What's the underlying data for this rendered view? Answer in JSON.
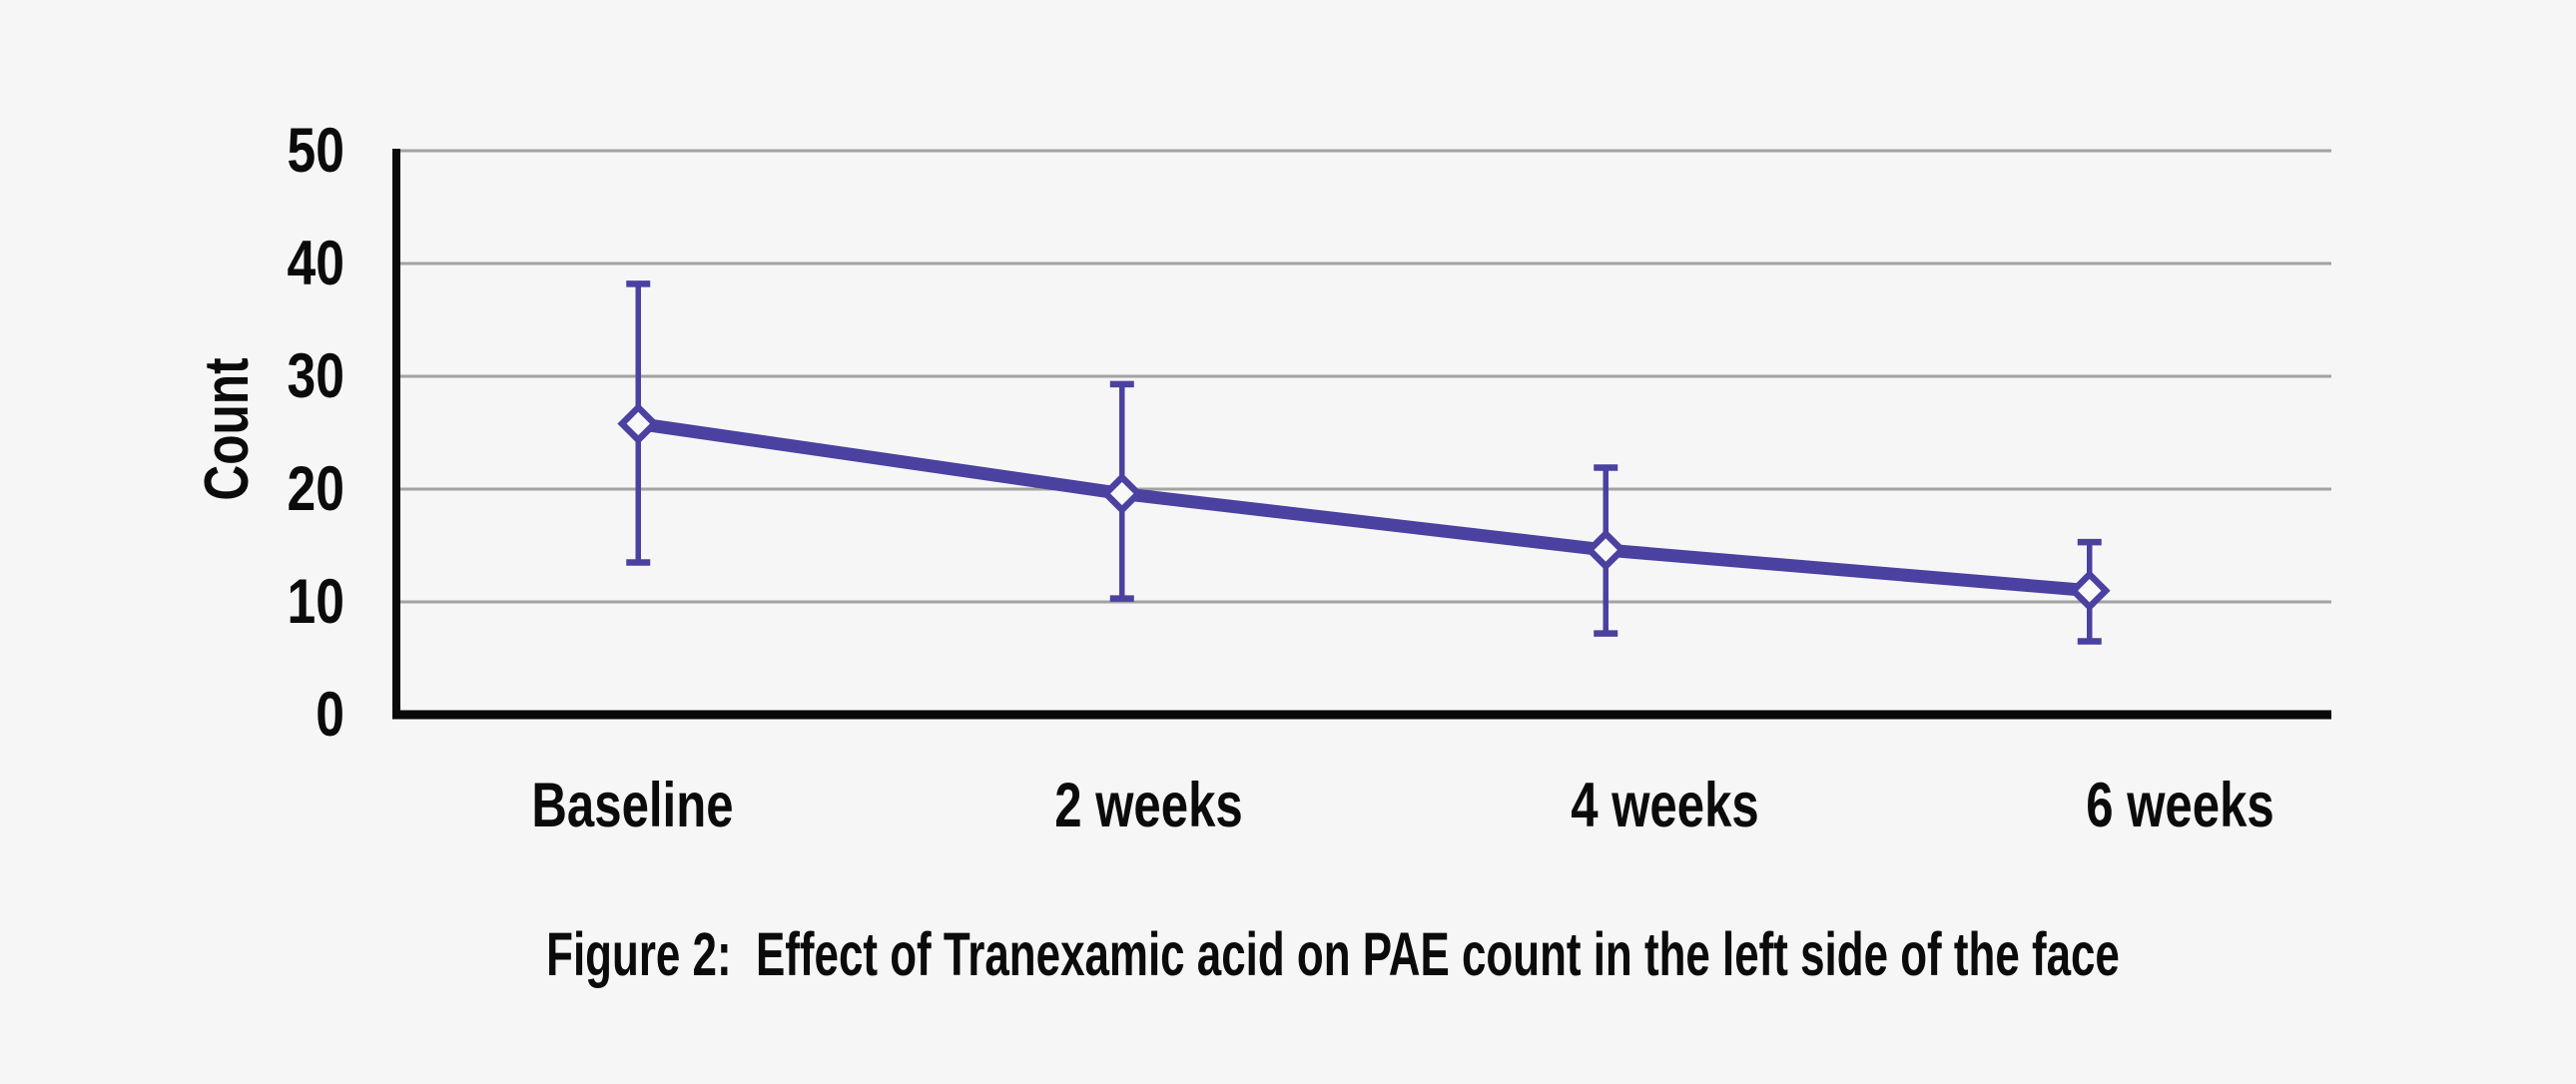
{
  "figure": {
    "caption": "Figure 2:  Effect of Tranexamic acid on PAE count in the left side of the face"
  },
  "chart_data": {
    "type": "line",
    "title": "Figure 2:  Effect of Tranexamic acid on PAE count in the left side of the face",
    "xlabel": "",
    "ylabel": "Count",
    "categories": [
      "Baseline",
      "2 weeks",
      "4 weeks",
      "6 weeks"
    ],
    "series": [
      {
        "name": "PAE count, left side of face",
        "values": [
          25.8,
          19.6,
          14.6,
          11.0
        ],
        "error_upper": [
          38.2,
          29.3,
          21.9,
          15.3
        ],
        "error_lower": [
          13.5,
          10.3,
          7.2,
          6.5
        ]
      }
    ],
    "ylim": [
      0,
      50
    ],
    "yticks": [
      0,
      10,
      20,
      30,
      40,
      50
    ],
    "grid": "horizontal",
    "legend": "none",
    "marker": "open-diamond",
    "colors": {
      "line": "#4a41a0",
      "marker_fill": "#f9f8f9",
      "grid": "#a2a2a2",
      "axis": "#0a0a0a",
      "text": "#0b0b0b",
      "background": "#f7f6f7"
    }
  }
}
